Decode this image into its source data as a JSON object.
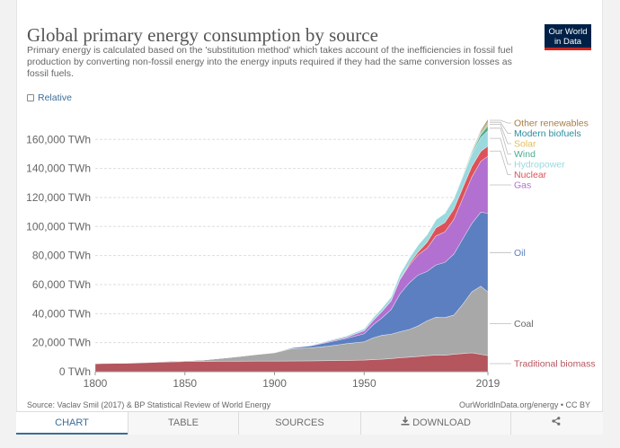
{
  "header": {
    "title": "Global primary energy consumption by source",
    "subtitle": "Primary energy is calculated based on the 'substitution method' which takes account of the inefficiencies in fossil fuel production by converting non-fossil energy into the energy inputs required if they had the same conversion losses as fossil fuels.",
    "logo_line1": "Our World",
    "logo_line2": "in Data"
  },
  "controls": {
    "relative_label": "Relative"
  },
  "footer": {
    "source": "Source: Vaclav Smil (2017) & BP Statistical Review of World Energy",
    "attribution": "OurWorldInData.org/energy • CC BY"
  },
  "tabs": [
    {
      "label": "CHART",
      "icon": ""
    },
    {
      "label": "TABLE",
      "icon": ""
    },
    {
      "label": "SOURCES",
      "icon": ""
    },
    {
      "label": "DOWNLOAD",
      "icon": "download-icon"
    },
    {
      "label": "",
      "icon": "share-icon"
    }
  ],
  "chart_data": {
    "type": "area",
    "stacked": true,
    "title": "Global primary energy consumption by source",
    "x": [
      1800,
      1820,
      1840,
      1850,
      1860,
      1870,
      1880,
      1890,
      1900,
      1910,
      1920,
      1930,
      1940,
      1950,
      1955,
      1960,
      1965,
      1970,
      1975,
      1980,
      1985,
      1990,
      1995,
      2000,
      2005,
      2010,
      2015,
      2019
    ],
    "xticks": [
      "1800",
      "1850",
      "1900",
      "1950",
      "2019"
    ],
    "yticks": [
      "0 TWh",
      "20,000 TWh",
      "40,000 TWh",
      "60,000 TWh",
      "80,000 TWh",
      "100,000 TWh",
      "120,000 TWh",
      "140,000 TWh",
      "160,000 TWh"
    ],
    "ylim": [
      0,
      175000
    ],
    "series": [
      {
        "name": "Traditional biomass",
        "color": "#b5555e",
        "values": [
          5560,
          5900,
          6700,
          7000,
          7100,
          7200,
          7250,
          7300,
          7300,
          7400,
          7450,
          7600,
          7800,
          8000,
          8300,
          8600,
          9000,
          9600,
          10000,
          10500,
          11000,
          11500,
          11300,
          12000,
          12500,
          13000,
          11900,
          11100
        ]
      },
      {
        "name": "Coal",
        "color": "#a8a8a8",
        "values": [
          100,
          200,
          500,
          600,
          1000,
          2000,
          3200,
          4500,
          5700,
          8500,
          9000,
          10000,
          11500,
          12600,
          15000,
          16500,
          16800,
          18000,
          19000,
          21000,
          24000,
          26000,
          26000,
          27000,
          34000,
          42000,
          47000,
          43850
        ]
      },
      {
        "name": "Oil",
        "color": "#5b7fc0",
        "values": [
          0,
          0,
          0,
          0,
          0,
          10,
          30,
          100,
          200,
          600,
          1300,
          2700,
          3600,
          5500,
          9000,
          12000,
          17000,
          26000,
          32000,
          35000,
          34000,
          36000,
          38000,
          42000,
          45000,
          47000,
          51000,
          54200
        ]
      },
      {
        "name": "Gas",
        "color": "#b270d0",
        "values": [
          0,
          0,
          0,
          0,
          0,
          0,
          0,
          0,
          70,
          200,
          300,
          650,
          850,
          2100,
          3000,
          4500,
          6000,
          10000,
          12000,
          14000,
          16000,
          20000,
          21000,
          24000,
          28000,
          32000,
          35000,
          39300
        ]
      },
      {
        "name": "Nuclear",
        "color": "#dd5259",
        "values": [
          0,
          0,
          0,
          0,
          0,
          0,
          0,
          0,
          0,
          0,
          0,
          0,
          0,
          0,
          0,
          0,
          60,
          300,
          1000,
          1900,
          4000,
          5500,
          6500,
          7000,
          7300,
          7300,
          6800,
          7000
        ]
      },
      {
        "name": "Hydropower",
        "color": "#9ad9de",
        "values": [
          0,
          0,
          0,
          0,
          0,
          0,
          0,
          0,
          15,
          100,
          300,
          550,
          900,
          1400,
          2000,
          2400,
          2700,
          3500,
          4000,
          4800,
          5300,
          5700,
          6300,
          7100,
          7600,
          8500,
          9500,
          10500
        ]
      },
      {
        "name": "Wind",
        "color": "#4cac92",
        "values": [
          0,
          0,
          0,
          0,
          0,
          0,
          0,
          0,
          0,
          0,
          0,
          0,
          0,
          0,
          0,
          0,
          0,
          0,
          0,
          0,
          0,
          10,
          20,
          80,
          300,
          900,
          2200,
          3500
        ]
      },
      {
        "name": "Solar",
        "color": "#e3bd55",
        "values": [
          0,
          0,
          0,
          0,
          0,
          0,
          0,
          0,
          0,
          0,
          0,
          0,
          0,
          0,
          0,
          0,
          0,
          0,
          0,
          0,
          0,
          0,
          0,
          0,
          20,
          100,
          650,
          1800
        ]
      },
      {
        "name": "Modern biofuels",
        "color": "#2d8c9e",
        "values": [
          0,
          0,
          0,
          0,
          0,
          0,
          0,
          0,
          0,
          0,
          0,
          0,
          0,
          0,
          0,
          0,
          0,
          0,
          0,
          0,
          0,
          0,
          70,
          150,
          300,
          650,
          1000,
          1100
        ]
      },
      {
        "name": "Other renewables",
        "color": "#a87c44",
        "values": [
          0,
          0,
          0,
          0,
          0,
          0,
          0,
          0,
          0,
          0,
          0,
          0,
          0,
          0,
          0,
          0,
          0,
          0,
          0,
          0,
          0,
          0,
          0,
          0,
          0,
          550,
          1000,
          1600
        ]
      }
    ]
  }
}
